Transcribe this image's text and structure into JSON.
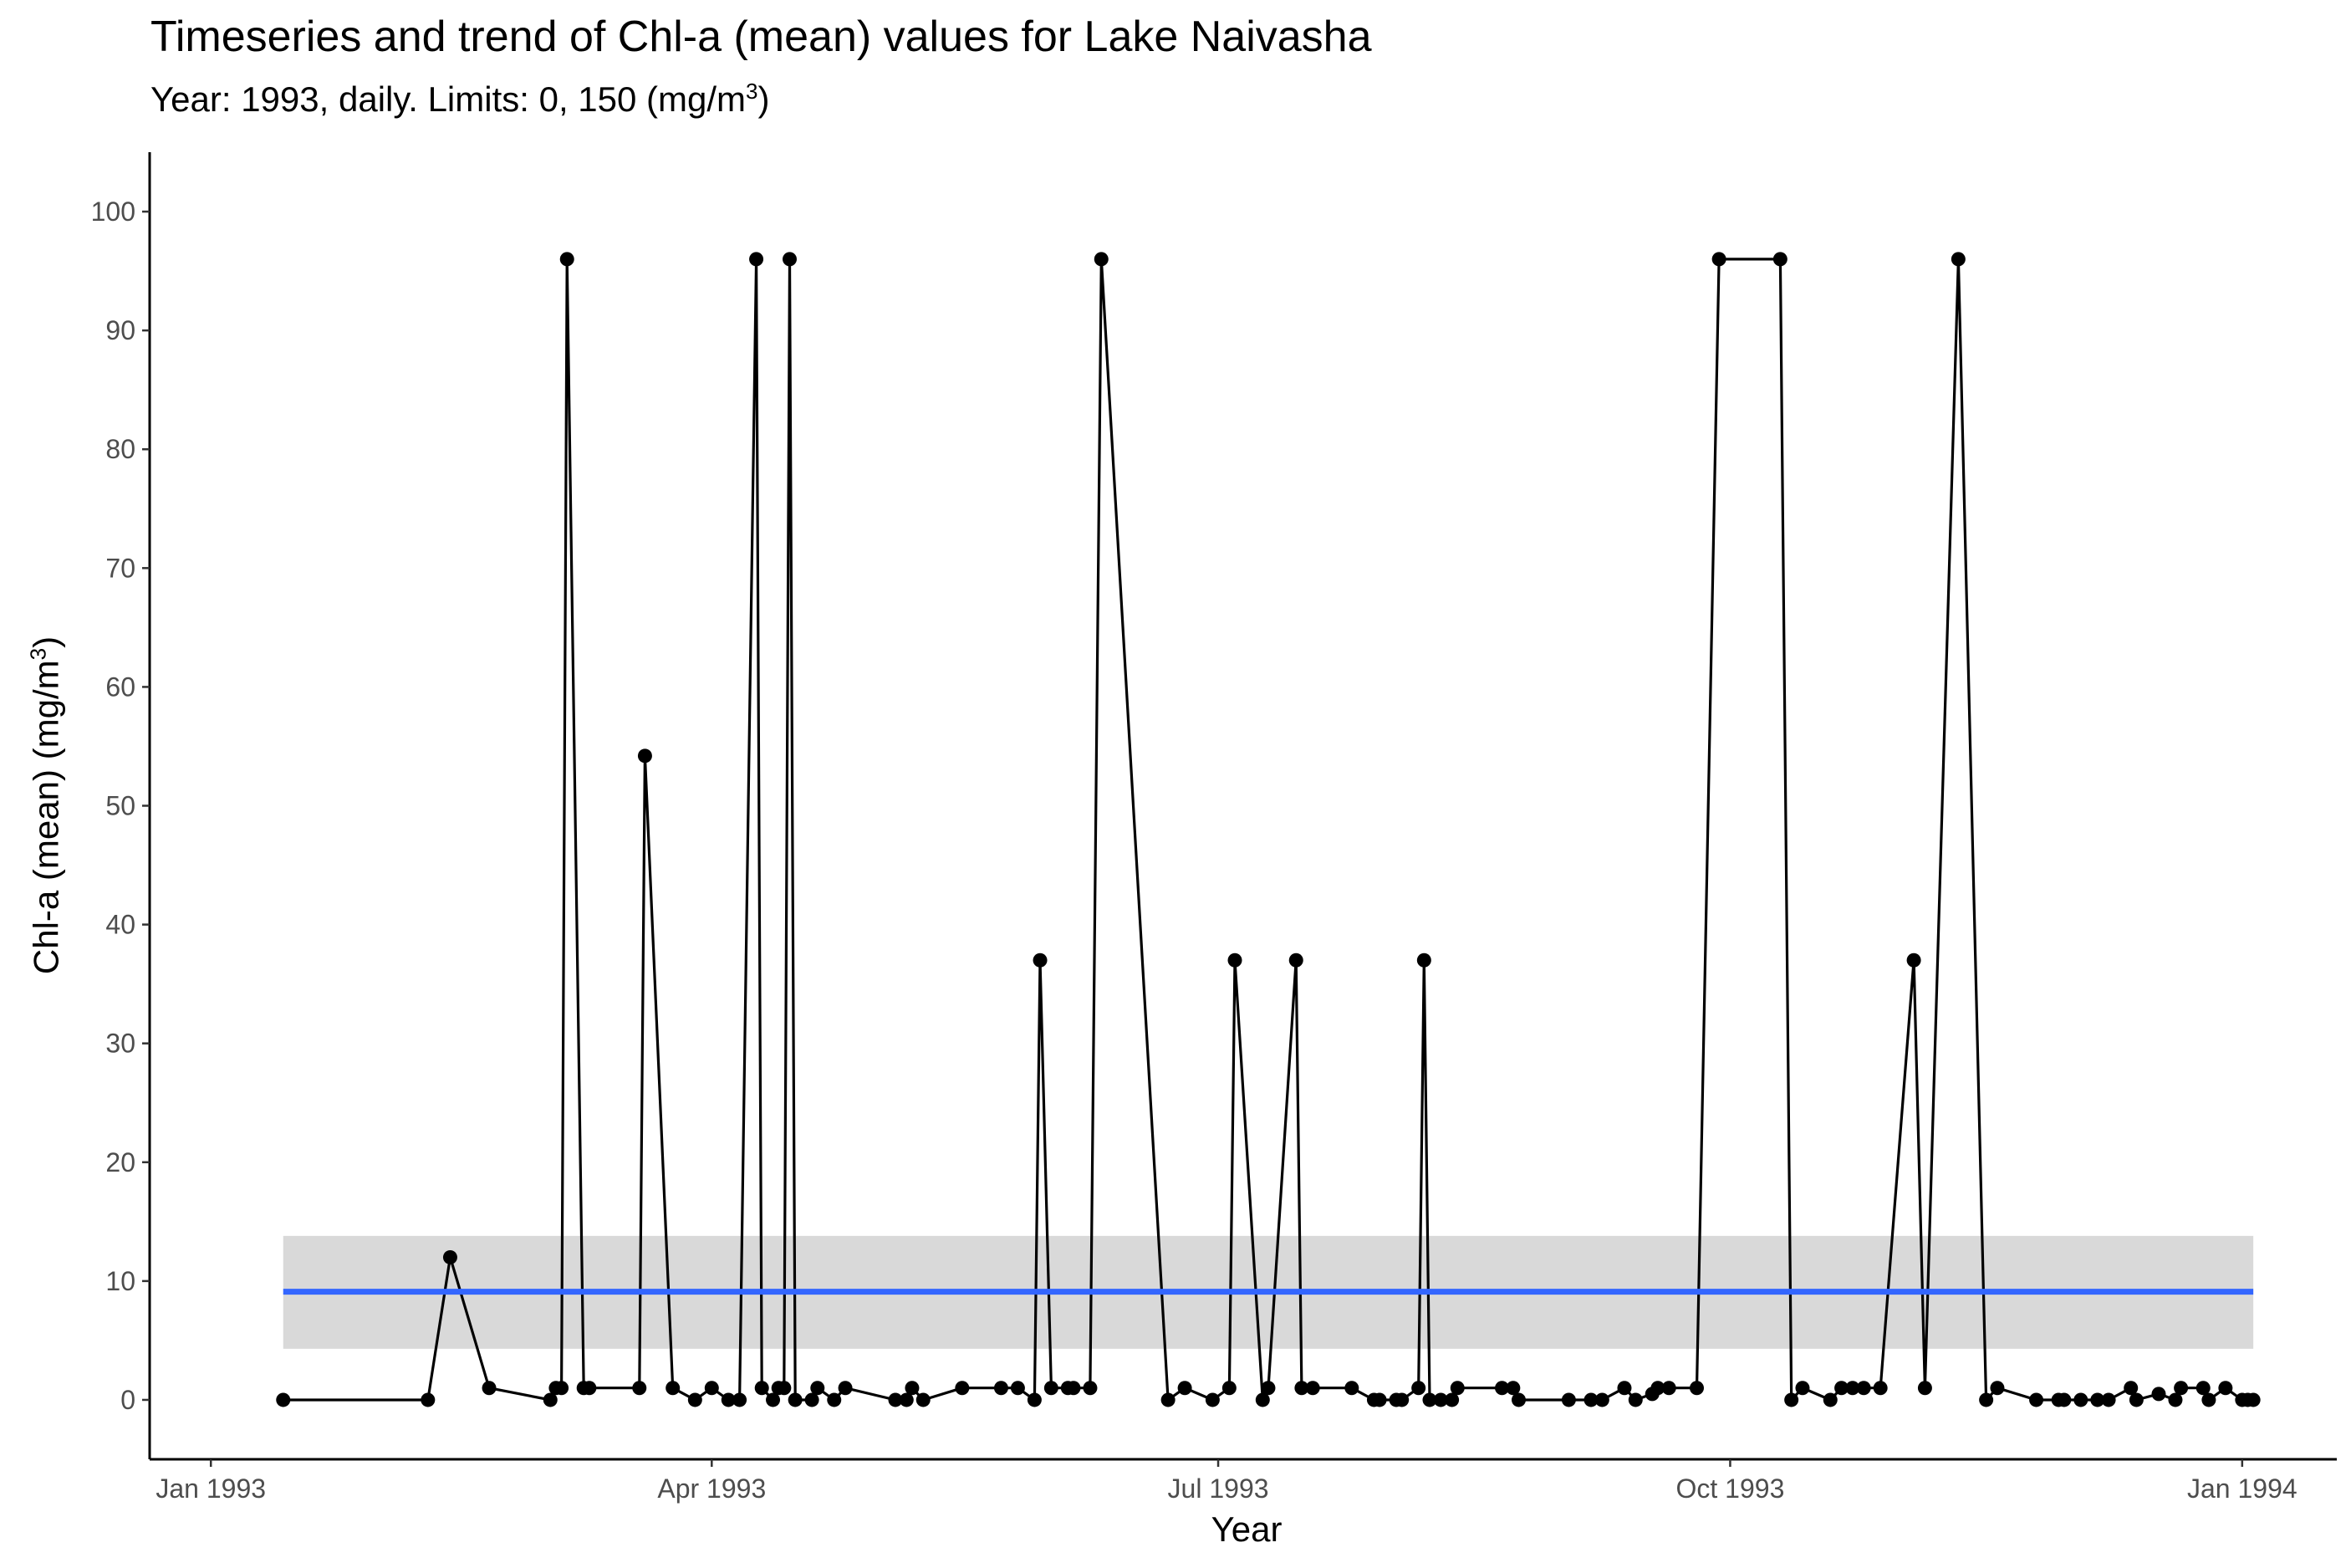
{
  "chart_data": {
    "type": "line",
    "title": "Timeseries and trend of Chl-a (mean) values for Lake Naivasha",
    "subtitle": {
      "before": "Year: 1993, daily. Limits: 0, 150 ",
      "paren_open": "(",
      "unit": "mg/m",
      "sup": "3",
      "paren_close": ")"
    },
    "xlabel": "Year",
    "ylabel": {
      "text": "Chl-a (mean) (mg/m",
      "sup": "3",
      "close": ")"
    },
    "x_ticks": [
      {
        "date": "1993-01-01",
        "label": "Jan 1993"
      },
      {
        "date": "1993-04-01",
        "label": "Apr 1993"
      },
      {
        "date": "1993-07-01",
        "label": "Jul 1993"
      },
      {
        "date": "1993-10-01",
        "label": "Oct 1993"
      },
      {
        "date": "1994-01-01",
        "label": "Jan 1994"
      }
    ],
    "y_ticks": [
      0,
      10,
      20,
      30,
      40,
      50,
      60,
      70,
      80,
      90,
      100
    ],
    "xlim": [
      "1992-12-21",
      "1994-01-18"
    ],
    "ylim": [
      -5,
      105
    ],
    "grid": false,
    "colors": {
      "series": "#000000",
      "trend": "#3366ff",
      "ribbon": "#d9d9d9",
      "axis": "#000000",
      "tick_label": "#4d4d4d"
    },
    "series": [
      {
        "values": [
          [
            "1993-01-14",
            0
          ],
          [
            "1993-02-09",
            0
          ],
          [
            "1993-02-13",
            12
          ],
          [
            "1993-02-20",
            1
          ],
          [
            "1993-03-03",
            0
          ],
          [
            "1993-03-04",
            1
          ],
          [
            "1993-03-05",
            1
          ],
          [
            "1993-03-06",
            96
          ],
          [
            "1993-03-09",
            1
          ],
          [
            "1993-03-10",
            1
          ],
          [
            "1993-03-19",
            1
          ],
          [
            "1993-03-20",
            54.2
          ],
          [
            "1993-03-25",
            1
          ],
          [
            "1993-03-29",
            0
          ],
          [
            "1993-04-01",
            1
          ],
          [
            "1993-04-04",
            0
          ],
          [
            "1993-04-06",
            0
          ],
          [
            "1993-04-09",
            96
          ],
          [
            "1993-04-10",
            1
          ],
          [
            "1993-04-12",
            0
          ],
          [
            "1993-04-13",
            1
          ],
          [
            "1993-04-14",
            1
          ],
          [
            "1993-04-15",
            96
          ],
          [
            "1993-04-16",
            0
          ],
          [
            "1993-04-19",
            0
          ],
          [
            "1993-04-20",
            1
          ],
          [
            "1993-04-23",
            0
          ],
          [
            "1993-04-25",
            1
          ],
          [
            "1993-05-04",
            0
          ],
          [
            "1993-05-06",
            0
          ],
          [
            "1993-05-07",
            1
          ],
          [
            "1993-05-09",
            0
          ],
          [
            "1993-05-16",
            1
          ],
          [
            "1993-05-23",
            1
          ],
          [
            "1993-05-26",
            1
          ],
          [
            "1993-05-29",
            0
          ],
          [
            "1993-05-30",
            37
          ],
          [
            "1993-06-01",
            1
          ],
          [
            "1993-06-04",
            1
          ],
          [
            "1993-06-05",
            1
          ],
          [
            "1993-06-08",
            1
          ],
          [
            "1993-06-10",
            96
          ],
          [
            "1993-06-22",
            0
          ],
          [
            "1993-06-25",
            1
          ],
          [
            "1993-06-30",
            0
          ],
          [
            "1993-07-03",
            1
          ],
          [
            "1993-07-04",
            37
          ],
          [
            "1993-07-09",
            0
          ],
          [
            "1993-07-10",
            1
          ],
          [
            "1993-07-15",
            37
          ],
          [
            "1993-07-16",
            1
          ],
          [
            "1993-07-18",
            1
          ],
          [
            "1993-07-25",
            1
          ],
          [
            "1993-07-29",
            0
          ],
          [
            "1993-07-30",
            0
          ],
          [
            "1993-08-02",
            0
          ],
          [
            "1993-08-03",
            0
          ],
          [
            "1993-08-06",
            1
          ],
          [
            "1993-08-07",
            37
          ],
          [
            "1993-08-08",
            0
          ],
          [
            "1993-08-10",
            0
          ],
          [
            "1993-08-12",
            0
          ],
          [
            "1993-08-13",
            1
          ],
          [
            "1993-08-21",
            1
          ],
          [
            "1993-08-23",
            1
          ],
          [
            "1993-08-24",
            0
          ],
          [
            "1993-09-02",
            0
          ],
          [
            "1993-09-06",
            0
          ],
          [
            "1993-09-08",
            0
          ],
          [
            "1993-09-12",
            1
          ],
          [
            "1993-09-14",
            0
          ],
          [
            "1993-09-17",
            0.5
          ],
          [
            "1993-09-18",
            1
          ],
          [
            "1993-09-20",
            1
          ],
          [
            "1993-09-25",
            1
          ],
          [
            "1993-09-29",
            96
          ],
          [
            "1993-10-10",
            96
          ],
          [
            "1993-10-12",
            0
          ],
          [
            "1993-10-14",
            1
          ],
          [
            "1993-10-19",
            0
          ],
          [
            "1993-10-21",
            1
          ],
          [
            "1993-10-23",
            1
          ],
          [
            "1993-10-25",
            1
          ],
          [
            "1993-10-28",
            1
          ],
          [
            "1993-11-03",
            37
          ],
          [
            "1993-11-05",
            1
          ],
          [
            "1993-11-11",
            96
          ],
          [
            "1993-11-16",
            0
          ],
          [
            "1993-11-18",
            1
          ],
          [
            "1993-11-25",
            0
          ],
          [
            "1993-11-29",
            0
          ],
          [
            "1993-11-30",
            0
          ],
          [
            "1993-12-03",
            0
          ],
          [
            "1993-12-06",
            0
          ],
          [
            "1993-12-08",
            0
          ],
          [
            "1993-12-12",
            1
          ],
          [
            "1993-12-13",
            0
          ],
          [
            "1993-12-17",
            0.5
          ],
          [
            "1993-12-20",
            0
          ],
          [
            "1993-12-21",
            1
          ],
          [
            "1993-12-25",
            1
          ],
          [
            "1993-12-26",
            0
          ],
          [
            "1993-12-29",
            1
          ],
          [
            "1994-01-01",
            0
          ],
          [
            "1994-01-02",
            0
          ],
          [
            "1994-01-03",
            0
          ]
        ]
      }
    ],
    "trend": {
      "x_range": [
        "1993-01-14",
        "1994-01-03"
      ],
      "value": 9.1,
      "lower": 4.3,
      "upper": 13.8
    }
  }
}
